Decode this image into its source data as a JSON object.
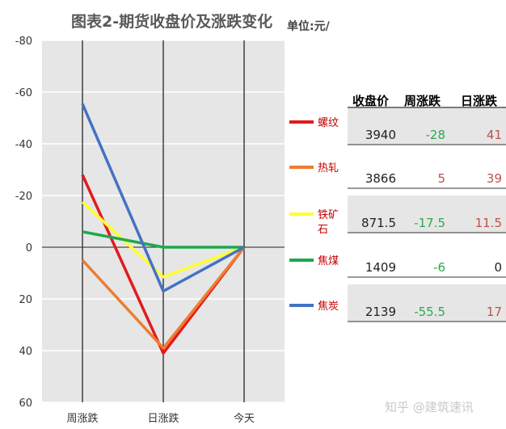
{
  "title": "图表2-期货收盘价及涨跌变化",
  "unit": "单位:元/",
  "watermark": "知乎 @建筑速讯",
  "table": {
    "headers": [
      "收盘价",
      "周涨跌",
      "日涨跌"
    ],
    "rows": [
      {
        "name": "螺纹",
        "close": "3940",
        "week": "-28",
        "day": "41"
      },
      {
        "name": "热轧",
        "close": "3866",
        "week": "5",
        "day": "39"
      },
      {
        "name": "铁矿石",
        "close": "871.5",
        "week": "-17.5",
        "day": "11.5"
      },
      {
        "name": "焦煤",
        "close": "1409",
        "week": "-6",
        "day": "0"
      },
      {
        "name": "焦炭",
        "close": "2139",
        "week": "-55.5",
        "day": "17"
      }
    ]
  },
  "colors": {
    "螺纹": "#e31a1c",
    "热轧": "#ed7d31",
    "铁矿石": "#ffff33",
    "焦煤": "#1fa84f",
    "焦炭": "#4472c4",
    "negative_text": "#2fa84f",
    "positive_text": "#c0504d",
    "plot_bg": "#e6e6e6"
  },
  "chart_data": {
    "type": "line",
    "categories": [
      "周涨跌",
      "日涨跌",
      "今天"
    ],
    "ylim": [
      -80,
      60
    ],
    "y_reversed": true,
    "yticks": [
      -80,
      -60,
      -40,
      -20,
      0,
      20,
      40,
      60
    ],
    "grid": true,
    "series": [
      {
        "name": "螺纹",
        "values": [
          -28,
          41,
          0
        ]
      },
      {
        "name": "热轧",
        "values": [
          5,
          39,
          0
        ]
      },
      {
        "name": "铁矿石",
        "values": [
          -17.5,
          11.5,
          0
        ]
      },
      {
        "name": "焦煤",
        "values": [
          -6,
          0,
          0
        ]
      },
      {
        "name": "焦炭",
        "values": [
          -55.5,
          17,
          0
        ]
      }
    ]
  }
}
